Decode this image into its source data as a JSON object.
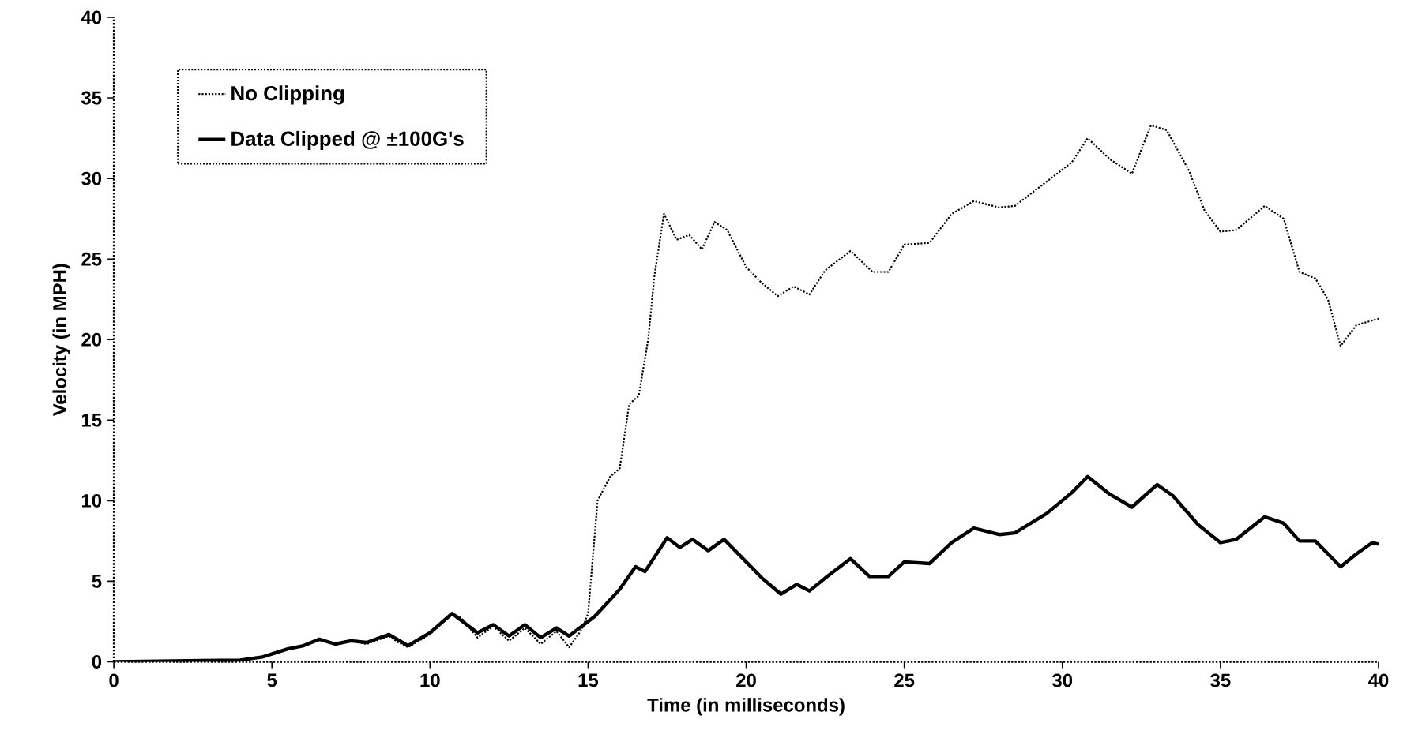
{
  "chart_data": {
    "type": "line",
    "xlabel": "Time (in milliseconds)",
    "ylabel": "Velocity (in MPH)",
    "xlim": [
      0,
      40
    ],
    "ylim": [
      0,
      40
    ],
    "xticks": [
      0,
      5,
      10,
      15,
      20,
      25,
      30,
      35,
      40
    ],
    "yticks": [
      0,
      5,
      10,
      15,
      20,
      25,
      30,
      35,
      40
    ],
    "grid": false,
    "legend": "top left",
    "marker": "none",
    "series": [
      {
        "name": "No Clipping",
        "color": "#000000",
        "line_style": "dotted",
        "x": [
          0,
          4,
          4.7,
          5.5,
          6,
          6.5,
          7,
          7.5,
          8,
          8.7,
          9,
          9.3,
          10,
          10.7,
          11,
          11.5,
          12,
          12.5,
          13,
          13.5,
          14,
          14.4,
          14.8,
          15,
          15.3,
          15.7,
          16,
          16.3,
          16.6,
          16.9,
          17.1,
          17.4,
          17.8,
          18.2,
          18.6,
          19,
          19.4,
          20,
          20.5,
          21,
          21.5,
          22,
          22.5,
          23.3,
          24,
          24.5,
          25,
          25.8,
          26.5,
          27.2,
          28,
          28.5,
          29.5,
          30.3,
          30.8,
          31.5,
          32.2,
          32.8,
          33.3,
          34,
          34.5,
          35,
          35.5,
          36.4,
          37,
          37.5,
          38,
          38.4,
          38.8,
          39.3,
          40
        ],
        "values": [
          0,
          0.1,
          0.3,
          0.8,
          1.0,
          1.4,
          1.1,
          1.3,
          1.1,
          1.6,
          1.2,
          0.9,
          1.7,
          3.0,
          2.7,
          1.5,
          2.2,
          1.3,
          2.1,
          1.1,
          1.9,
          0.9,
          2.0,
          3.0,
          10.0,
          11.5,
          12.0,
          16.0,
          16.5,
          20.0,
          24.0,
          27.8,
          26.2,
          26.5,
          25.6,
          27.3,
          26.8,
          24.5,
          23.5,
          22.7,
          23.3,
          22.8,
          24.3,
          25.5,
          24.2,
          24.2,
          25.9,
          26.0,
          27.8,
          28.6,
          28.2,
          28.3,
          29.8,
          31.0,
          32.5,
          31.2,
          30.3,
          33.3,
          33.0,
          30.5,
          28.0,
          26.7,
          26.8,
          28.3,
          27.5,
          24.2,
          23.8,
          22.5,
          19.6,
          20.9,
          21.3
        ]
      },
      {
        "name": "Data Clipped @ ±100G's",
        "color": "#000000",
        "line_style": "solid",
        "x": [
          0,
          4,
          4.7,
          5.5,
          6,
          6.5,
          7,
          7.5,
          8,
          8.7,
          9.3,
          10,
          10.7,
          11.5,
          12,
          12.5,
          13,
          13.5,
          14,
          14.4,
          14.8,
          15.2,
          16,
          16.5,
          16.8,
          17.5,
          17.9,
          18.3,
          18.8,
          19.3,
          20,
          20.5,
          21.1,
          21.6,
          22,
          22.5,
          23.3,
          23.9,
          24.5,
          25,
          25.8,
          26.5,
          27.2,
          28,
          28.5,
          29.5,
          30.3,
          30.8,
          31.5,
          32.2,
          33,
          33.5,
          34.3,
          35,
          35.5,
          36.4,
          37,
          37.5,
          38,
          38.8,
          39.3,
          39.8,
          40
        ],
        "values": [
          0,
          0.1,
          0.3,
          0.8,
          1.0,
          1.4,
          1.1,
          1.3,
          1.2,
          1.7,
          1.0,
          1.8,
          3.0,
          1.8,
          2.3,
          1.6,
          2.3,
          1.5,
          2.1,
          1.6,
          2.2,
          2.8,
          4.5,
          5.9,
          5.6,
          7.7,
          7.1,
          7.6,
          6.9,
          7.6,
          6.2,
          5.2,
          4.2,
          4.8,
          4.4,
          5.2,
          6.4,
          5.3,
          5.3,
          6.2,
          6.1,
          7.4,
          8.3,
          7.9,
          8.0,
          9.2,
          10.5,
          11.5,
          10.4,
          9.6,
          11.0,
          10.3,
          8.5,
          7.4,
          7.6,
          9.0,
          8.6,
          7.5,
          7.5,
          5.9,
          6.7,
          7.4,
          7.3
        ]
      }
    ]
  }
}
